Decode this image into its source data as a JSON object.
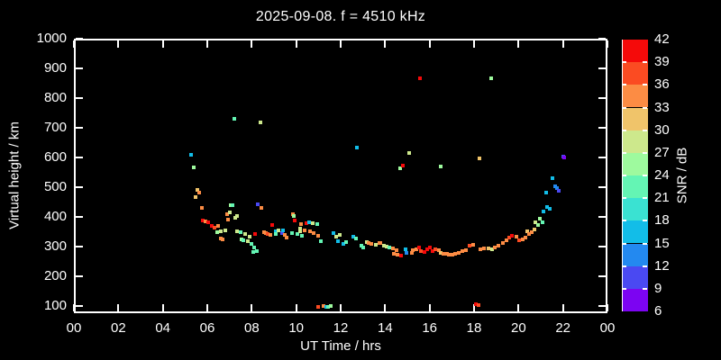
{
  "title": "2025-09-08. f = 4510 kHz",
  "x_axis": {
    "label": "UT Time / hrs",
    "tick_hours": [
      0,
      2,
      4,
      6,
      8,
      10,
      12,
      14,
      16,
      18,
      20,
      22,
      24
    ],
    "tick_labels": [
      "00",
      "02",
      "04",
      "06",
      "08",
      "10",
      "12",
      "14",
      "16",
      "18",
      "20",
      "22",
      "00"
    ]
  },
  "y_axis": {
    "label": "Virtual height / km",
    "tick_values": [
      100,
      200,
      300,
      400,
      500,
      600,
      700,
      800,
      900,
      1000
    ],
    "tick_labels": [
      "100",
      "200",
      "300",
      "400",
      "500",
      "600",
      "700",
      "800",
      "900",
      "1000"
    ]
  },
  "colorbar": {
    "label": "SNR / dB",
    "tick_labels": [
      "42",
      "39",
      "36",
      "33",
      "30",
      "27",
      "24",
      "21",
      "18",
      "15",
      "12",
      "9",
      "6"
    ],
    "segment_colors_top_to_bottom": [
      "#f50a0a",
      "#fb4b22",
      "#fc8c44",
      "#f0c46a",
      "#cde88c",
      "#9efa9e",
      "#64f5b4",
      "#3ae2d2",
      "#12bde8",
      "#2389f0",
      "#4a49f2",
      "#7c04f2"
    ]
  },
  "chart_data": {
    "type": "scatter",
    "title": "2025-09-08. f = 4510 kHz",
    "xlabel": "UT Time / hrs",
    "ylabel": "Virtual height / km",
    "colorbar_label": "SNR / dB",
    "xlim": [
      0,
      24
    ],
    "ylim": [
      75,
      1000
    ],
    "grid": false,
    "snr_range_db": [
      6,
      42
    ],
    "snr_bucket_colors_low_to_high": [
      "#7c04f2",
      "#4a49f2",
      "#2389f0",
      "#12bde8",
      "#3ae2d2",
      "#64f5b4",
      "#9efa9e",
      "#cde88c",
      "#f0c46a",
      "#fc8c44",
      "#fb4b22",
      "#f50a0a"
    ],
    "points_t_h_snr": [
      [
        5.25,
        608,
        16.5
      ],
      [
        5.4,
        568,
        25.5
      ],
      [
        5.48,
        466,
        31.5
      ],
      [
        5.57,
        492,
        31.5
      ],
      [
        5.64,
        482,
        34.5
      ],
      [
        5.75,
        430,
        34.5
      ],
      [
        5.78,
        388,
        40.5
      ],
      [
        5.9,
        385,
        34.5
      ],
      [
        6.05,
        381,
        40.5
      ],
      [
        6.2,
        370,
        40.5
      ],
      [
        6.33,
        364,
        37.5
      ],
      [
        6.45,
        348,
        25.5
      ],
      [
        6.5,
        370,
        34.5
      ],
      [
        6.6,
        352,
        28.5
      ],
      [
        6.62,
        327,
        34.5
      ],
      [
        6.7,
        324,
        34.5
      ],
      [
        6.8,
        355,
        28.5
      ],
      [
        6.9,
        409,
        34.5
      ],
      [
        6.95,
        391,
        34.5
      ],
      [
        7.0,
        415,
        28.5
      ],
      [
        7.05,
        440,
        25.5
      ],
      [
        7.12,
        438,
        22.5
      ],
      [
        7.22,
        730,
        22.5
      ],
      [
        7.25,
        397,
        28.5
      ],
      [
        7.34,
        403,
        28.5
      ],
      [
        7.35,
        352,
        28.5
      ],
      [
        7.5,
        349,
        22.5
      ],
      [
        7.55,
        324,
        25.5
      ],
      [
        7.62,
        321,
        22.5
      ],
      [
        7.7,
        341,
        28.5
      ],
      [
        7.82,
        318,
        28.5
      ],
      [
        7.9,
        333,
        28.5
      ],
      [
        8.0,
        309,
        22.5
      ],
      [
        8.05,
        282,
        22.5
      ],
      [
        8.12,
        297,
        22.5
      ],
      [
        8.15,
        342,
        40.5
      ],
      [
        8.23,
        285,
        22.5
      ],
      [
        8.27,
        442,
        10.5
      ],
      [
        8.39,
        718,
        28.5
      ],
      [
        8.43,
        430,
        34.5
      ],
      [
        8.55,
        349,
        34.5
      ],
      [
        8.62,
        346,
        34.5
      ],
      [
        8.7,
        342,
        37.5
      ],
      [
        8.85,
        339,
        34.5
      ],
      [
        8.9,
        373,
        40.5
      ],
      [
        9.08,
        352,
        16.5
      ],
      [
        9.1,
        342,
        22.5
      ],
      [
        9.2,
        354,
        28.5
      ],
      [
        9.36,
        346,
        10.5
      ],
      [
        9.42,
        354,
        16.5
      ],
      [
        9.5,
        339,
        34.5
      ],
      [
        9.57,
        330,
        34.5
      ],
      [
        9.8,
        346,
        22.5
      ],
      [
        9.85,
        409,
        34.5
      ],
      [
        9.9,
        403,
        25.5
      ],
      [
        9.95,
        388,
        40.5
      ],
      [
        10.05,
        342,
        22.5
      ],
      [
        10.16,
        360,
        28.5
      ],
      [
        10.17,
        352,
        28.5
      ],
      [
        10.23,
        376,
        34.5
      ],
      [
        10.25,
        336,
        22.5
      ],
      [
        10.36,
        356,
        34.5
      ],
      [
        10.46,
        378,
        40.5
      ],
      [
        10.59,
        381,
        16.5
      ],
      [
        10.62,
        351,
        34.5
      ],
      [
        10.76,
        378,
        28.5
      ],
      [
        10.8,
        345,
        34.5
      ],
      [
        10.93,
        375,
        22.5
      ],
      [
        10.97,
        337,
        34.5
      ],
      [
        11.11,
        319,
        22.5
      ],
      [
        10.99,
        98,
        37.5
      ],
      [
        11.22,
        99,
        34.5
      ],
      [
        11.34,
        98,
        16.5
      ],
      [
        11.43,
        98,
        22.5
      ],
      [
        11.55,
        100,
        25.5
      ],
      [
        11.68,
        346,
        16.5
      ],
      [
        11.8,
        333,
        28.5
      ],
      [
        11.88,
        318,
        16.5
      ],
      [
        11.96,
        339,
        28.5
      ],
      [
        12.12,
        309,
        16.5
      ],
      [
        12.24,
        315,
        22.5
      ],
      [
        12.57,
        333,
        16.5
      ],
      [
        12.69,
        327,
        22.5
      ],
      [
        12.73,
        633,
        16.5
      ],
      [
        12.93,
        303,
        22.5
      ],
      [
        13.01,
        297,
        22.5
      ],
      [
        13.17,
        315,
        28.5
      ],
      [
        13.26,
        312,
        34.5
      ],
      [
        13.38,
        309,
        34.5
      ],
      [
        13.58,
        306,
        28.5
      ],
      [
        13.74,
        312,
        34.5
      ],
      [
        13.8,
        312,
        34.5
      ],
      [
        13.95,
        303,
        28.5
      ],
      [
        14.07,
        300,
        28.5
      ],
      [
        14.19,
        297,
        22.5
      ],
      [
        14.35,
        294,
        34.5
      ],
      [
        14.39,
        276,
        34.5
      ],
      [
        14.51,
        288,
        34.5
      ],
      [
        14.55,
        273,
        34.5
      ],
      [
        14.68,
        563,
        25.5
      ],
      [
        14.71,
        270,
        40.5
      ],
      [
        14.78,
        573,
        40.5
      ],
      [
        14.92,
        291,
        16.5
      ],
      [
        14.96,
        279,
        13.5
      ],
      [
        15.08,
        616,
        28.5
      ],
      [
        15.2,
        279,
        34.5
      ],
      [
        15.24,
        288,
        34.5
      ],
      [
        15.4,
        291,
        34.5
      ],
      [
        15.52,
        297,
        40.5
      ],
      [
        15.57,
        866,
        40.5
      ],
      [
        15.62,
        285,
        37.5
      ],
      [
        15.77,
        282,
        40.5
      ],
      [
        15.89,
        291,
        40.5
      ],
      [
        16.01,
        297,
        40.5
      ],
      [
        16.13,
        285,
        40.5
      ],
      [
        16.25,
        291,
        37.5
      ],
      [
        16.42,
        288,
        34.5
      ],
      [
        16.5,
        570,
        25.5
      ],
      [
        16.52,
        279,
        31.5
      ],
      [
        16.62,
        276,
        34.5
      ],
      [
        16.78,
        276,
        34.5
      ],
      [
        16.88,
        273,
        34.5
      ],
      [
        17.02,
        273,
        34.5
      ],
      [
        17.15,
        276,
        34.5
      ],
      [
        17.31,
        279,
        34.5
      ],
      [
        17.47,
        285,
        34.5
      ],
      [
        17.63,
        288,
        34.5
      ],
      [
        17.8,
        303,
        37.5
      ],
      [
        17.96,
        306,
        34.5
      ],
      [
        18.08,
        106,
        40.5
      ],
      [
        18.2,
        103,
        37.5
      ],
      [
        18.24,
        597,
        31.5
      ],
      [
        18.28,
        291,
        34.5
      ],
      [
        18.44,
        294,
        34.5
      ],
      [
        18.65,
        294,
        31.5
      ],
      [
        18.77,
        866,
        25.5
      ],
      [
        18.81,
        291,
        28.5
      ],
      [
        18.93,
        297,
        34.5
      ],
      [
        19.09,
        303,
        34.5
      ],
      [
        19.3,
        312,
        34.5
      ],
      [
        19.46,
        321,
        34.5
      ],
      [
        19.58,
        330,
        37.5
      ],
      [
        19.7,
        336,
        40.5
      ],
      [
        19.91,
        333,
        34.5
      ],
      [
        20.03,
        321,
        37.5
      ],
      [
        20.19,
        324,
        34.5
      ],
      [
        20.31,
        330,
        34.5
      ],
      [
        20.39,
        352,
        31.5
      ],
      [
        20.47,
        342,
        34.5
      ],
      [
        20.6,
        349,
        34.5
      ],
      [
        20.72,
        358,
        31.5
      ],
      [
        20.76,
        382,
        28.5
      ],
      [
        20.88,
        373,
        25.5
      ],
      [
        20.96,
        394,
        25.5
      ],
      [
        21.08,
        382,
        22.5
      ],
      [
        21.12,
        418,
        16.5
      ],
      [
        21.25,
        482,
        16.5
      ],
      [
        21.29,
        433,
        16.5
      ],
      [
        21.41,
        427,
        16.5
      ],
      [
        21.52,
        530,
        16.5
      ],
      [
        21.64,
        503,
        13.5
      ],
      [
        21.72,
        497,
        13.5
      ],
      [
        21.8,
        488,
        10.5
      ],
      [
        22.0,
        603,
        10.5
      ],
      [
        22.04,
        600,
        7.5
      ]
    ]
  }
}
